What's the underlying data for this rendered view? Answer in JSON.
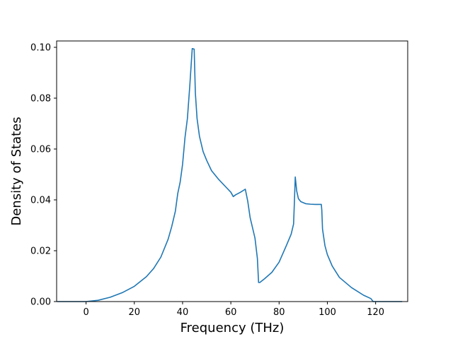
{
  "chart_data": {
    "type": "line",
    "xlabel": "Frequency (THz)",
    "ylabel": "Density of States",
    "xlim": [
      -12.2,
      133.3
    ],
    "ylim": [
      0.0,
      0.1025
    ],
    "x_ticks": [
      0,
      20,
      40,
      60,
      80,
      100,
      120
    ],
    "x_tick_labels": [
      "0",
      "20",
      "40",
      "60",
      "80",
      "100",
      "120"
    ],
    "y_ticks": [
      0.0,
      0.02,
      0.04,
      0.06,
      0.08,
      0.1
    ],
    "y_tick_labels": [
      "0.00",
      "0.02",
      "0.04",
      "0.06",
      "0.08",
      "0.10"
    ],
    "grid": false,
    "colors": {
      "line": "#1f77b4"
    },
    "series": [
      {
        "x": [
          -12,
          -5,
          0,
          5,
          10,
          15,
          20,
          25,
          28,
          31,
          34,
          35.5,
          37,
          38,
          39,
          40,
          41,
          42,
          43,
          44,
          44.8,
          45.3,
          46,
          47,
          48.5,
          50,
          52,
          55,
          58,
          60,
          61,
          62,
          64,
          66,
          67,
          68,
          70,
          71,
          71.5,
          72,
          74,
          77,
          80,
          83,
          85,
          86,
          86.3,
          86.7,
          87.3,
          88,
          89,
          91,
          93,
          95,
          97.5,
          97.7,
          98,
          99,
          100,
          102,
          105,
          110,
          115,
          118,
          119,
          120,
          125,
          131
        ],
        "y": [
          0.0,
          0.0,
          0.0,
          0.0005,
          0.0017,
          0.0035,
          0.006,
          0.0098,
          0.013,
          0.0175,
          0.0245,
          0.0295,
          0.0355,
          0.0425,
          0.047,
          0.054,
          0.0645,
          0.072,
          0.085,
          0.0995,
          0.0993,
          0.082,
          0.072,
          0.065,
          0.059,
          0.0555,
          0.0515,
          0.048,
          0.045,
          0.043,
          0.0413,
          0.042,
          0.043,
          0.0442,
          0.0395,
          0.033,
          0.025,
          0.017,
          0.0075,
          0.0075,
          0.009,
          0.0115,
          0.0155,
          0.022,
          0.0265,
          0.0305,
          0.038,
          0.049,
          0.0435,
          0.0405,
          0.0393,
          0.0385,
          0.0383,
          0.0382,
          0.0382,
          0.036,
          0.0285,
          0.022,
          0.0185,
          0.014,
          0.0095,
          0.0055,
          0.0025,
          0.0012,
          0.0,
          0.0,
          0.0,
          0.0
        ]
      }
    ]
  }
}
